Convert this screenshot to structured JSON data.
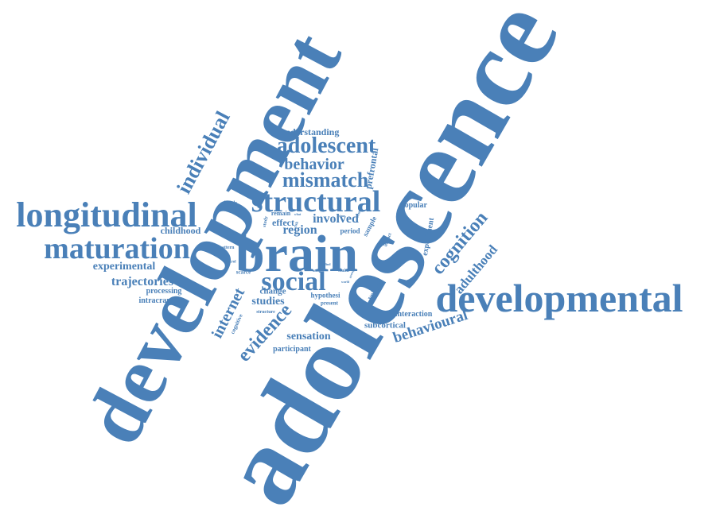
{
  "colors": {
    "word": "#4a80b8",
    "background": "#ffffff"
  },
  "words": [
    "adolescence",
    "development",
    "brain",
    "developmental",
    "longitudinal",
    "structural",
    "maturation",
    "social",
    "adolescent",
    "mismatch",
    "behavior",
    "individual",
    "cognition",
    "evidence",
    "internet",
    "adulthood",
    "behavioural",
    "trajectories",
    "experimental",
    "understanding",
    "involved",
    "region",
    "studies",
    "sensation",
    "childhood",
    "processing",
    "intracranial",
    "prefrontal",
    "subcortical",
    "interaction",
    "participant",
    "popular",
    "experiment",
    "effect",
    "change",
    "remain",
    "period",
    "sample",
    "hypothesi",
    "present",
    "volume",
    "scarce",
    "cognitive",
    "structure",
    "decade",
    "pattern",
    "control",
    "claim",
    "current",
    "impact",
    "study",
    "risk",
    "result",
    "world",
    "what",
    "strong",
    "year",
    "time",
    "affect",
    "find"
  ]
}
